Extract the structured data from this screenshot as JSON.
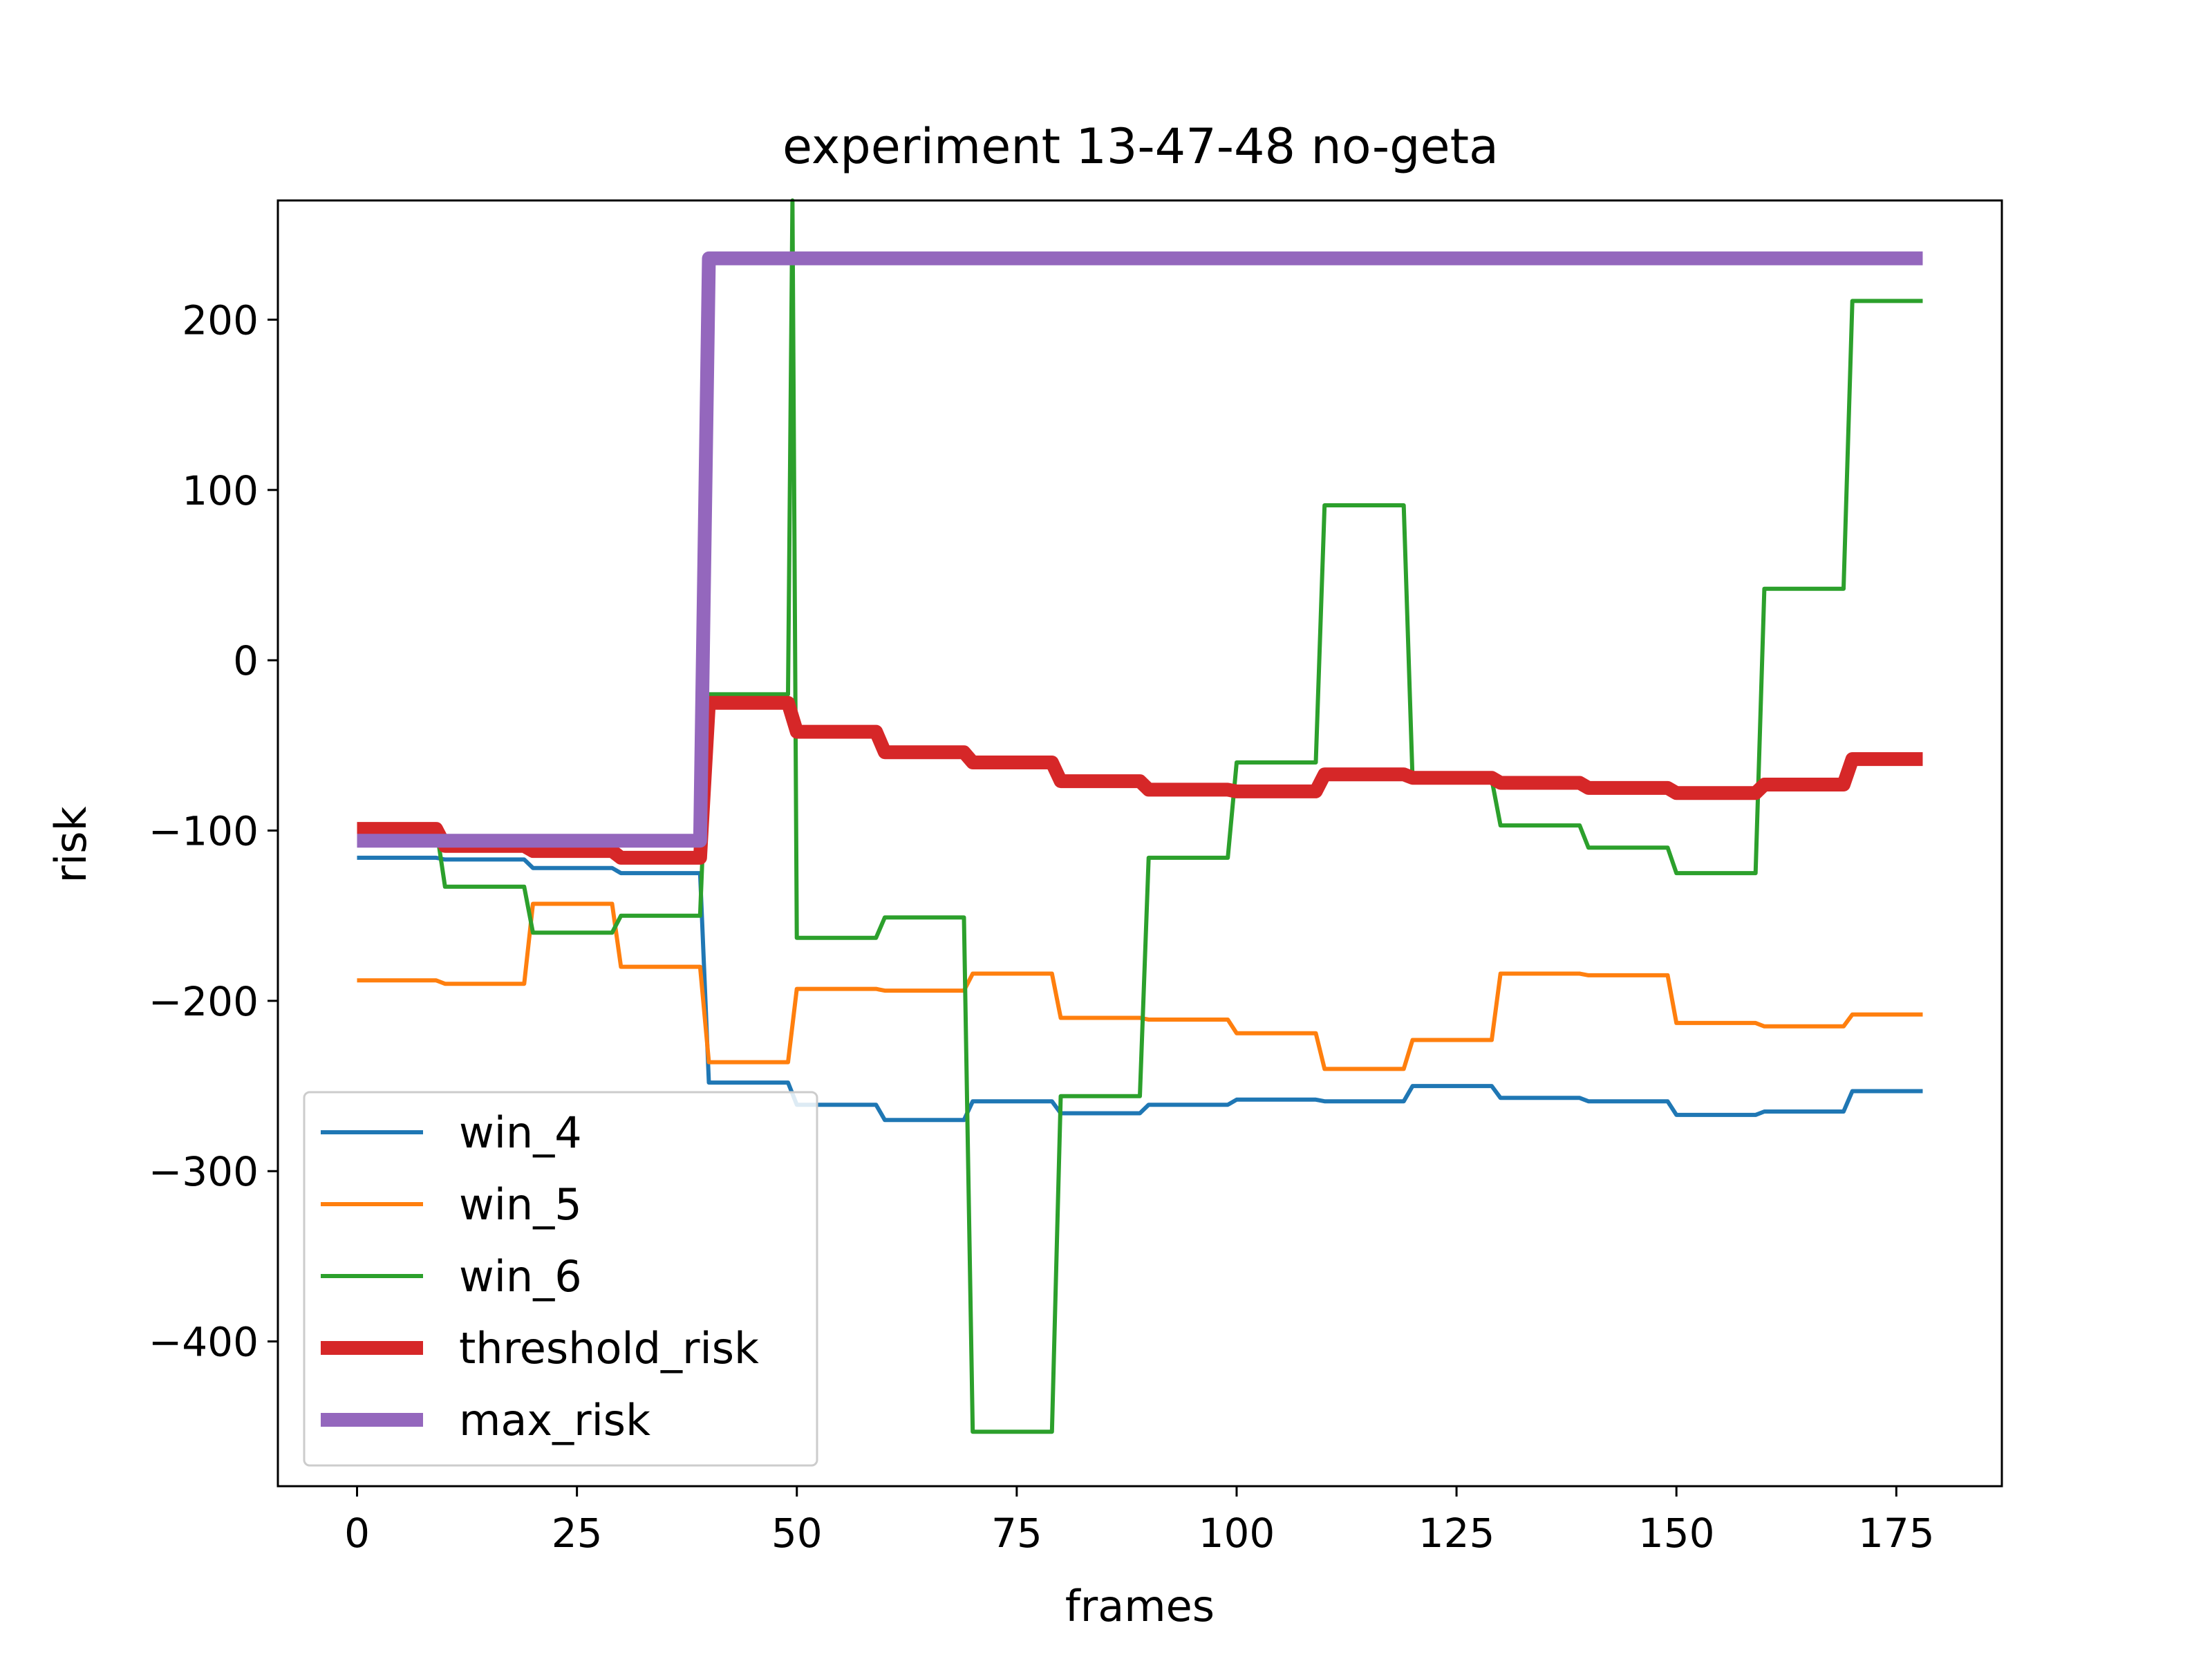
{
  "chart_data": {
    "type": "line",
    "title": "experiment 13-47-48 no-geta",
    "xlabel": "frames",
    "ylabel": "risk",
    "xlim": [
      -9,
      187
    ],
    "ylim": [
      -485,
      270
    ],
    "xticks": [
      0,
      25,
      50,
      75,
      100,
      125,
      150,
      175
    ],
    "yticks": [
      -400,
      -300,
      -200,
      -100,
      0,
      100,
      200
    ],
    "ytick_labels": [
      "−400",
      "−300",
      "−200",
      "−100",
      "0",
      "100",
      "200"
    ],
    "grid": false,
    "legend_position": "lower-left",
    "series": [
      {
        "name": "win_4",
        "color": "#1f77b4",
        "width": "thin",
        "points": [
          [
            0,
            -116
          ],
          [
            9,
            -116
          ],
          [
            10,
            -117
          ],
          [
            19,
            -117
          ],
          [
            20,
            -122
          ],
          [
            29,
            -122
          ],
          [
            30,
            -125
          ],
          [
            39,
            -125
          ],
          [
            40,
            -248
          ],
          [
            49,
            -248
          ],
          [
            50,
            -261
          ],
          [
            59,
            -261
          ],
          [
            60,
            -270
          ],
          [
            69,
            -270
          ],
          [
            70,
            -259
          ],
          [
            79,
            -259
          ],
          [
            80,
            -266
          ],
          [
            89,
            -266
          ],
          [
            90,
            -261
          ],
          [
            99,
            -261
          ],
          [
            100,
            -258
          ],
          [
            109,
            -258
          ],
          [
            110,
            -259
          ],
          [
            119,
            -259
          ],
          [
            120,
            -250
          ],
          [
            129,
            -250
          ],
          [
            130,
            -257
          ],
          [
            139,
            -257
          ],
          [
            140,
            -259
          ],
          [
            149,
            -259
          ],
          [
            150,
            -267
          ],
          [
            159,
            -267
          ],
          [
            160,
            -265
          ],
          [
            169,
            -265
          ],
          [
            170,
            -253
          ],
          [
            178,
            -253
          ]
        ]
      },
      {
        "name": "win_5",
        "color": "#ff7f0e",
        "width": "thin",
        "points": [
          [
            0,
            -188
          ],
          [
            9,
            -188
          ],
          [
            10,
            -190
          ],
          [
            19,
            -190
          ],
          [
            20,
            -143
          ],
          [
            29,
            -143
          ],
          [
            30,
            -180
          ],
          [
            39,
            -180
          ],
          [
            40,
            -236
          ],
          [
            49,
            -236
          ],
          [
            50,
            -193
          ],
          [
            59,
            -193
          ],
          [
            60,
            -194
          ],
          [
            69,
            -194
          ],
          [
            70,
            -184
          ],
          [
            79,
            -184
          ],
          [
            80,
            -210
          ],
          [
            89,
            -210
          ],
          [
            90,
            -211
          ],
          [
            99,
            -211
          ],
          [
            100,
            -219
          ],
          [
            109,
            -219
          ],
          [
            110,
            -240
          ],
          [
            119,
            -240
          ],
          [
            120,
            -223
          ],
          [
            129,
            -223
          ],
          [
            130,
            -184
          ],
          [
            139,
            -184
          ],
          [
            140,
            -185
          ],
          [
            149,
            -185
          ],
          [
            150,
            -213
          ],
          [
            159,
            -213
          ],
          [
            160,
            -215
          ],
          [
            169,
            -215
          ],
          [
            170,
            -208
          ],
          [
            178,
            -208
          ]
        ]
      },
      {
        "name": "win_6",
        "color": "#2ca02c",
        "width": "thin",
        "points": [
          [
            0,
            -98
          ],
          [
            9,
            -98
          ],
          [
            10,
            -133
          ],
          [
            19,
            -133
          ],
          [
            20,
            -160
          ],
          [
            29,
            -160
          ],
          [
            30,
            -150
          ],
          [
            39,
            -150
          ],
          [
            40,
            -20
          ],
          [
            49,
            -20
          ],
          [
            49.5,
            270
          ],
          [
            50,
            -163
          ],
          [
            59,
            -163
          ],
          [
            60,
            -151
          ],
          [
            69,
            -151
          ],
          [
            70,
            -453
          ],
          [
            79,
            -453
          ],
          [
            80,
            -256
          ],
          [
            89,
            -256
          ],
          [
            90,
            -116
          ],
          [
            99,
            -116
          ],
          [
            100,
            -60
          ],
          [
            109,
            -60
          ],
          [
            110,
            91
          ],
          [
            119,
            91
          ],
          [
            120,
            -70
          ],
          [
            129,
            -70
          ],
          [
            130,
            -97
          ],
          [
            139,
            -97
          ],
          [
            140,
            -110
          ],
          [
            149,
            -110
          ],
          [
            150,
            -125
          ],
          [
            159,
            -125
          ],
          [
            160,
            42
          ],
          [
            169,
            42
          ],
          [
            170,
            211
          ],
          [
            178,
            211
          ]
        ]
      },
      {
        "name": "threshold_risk",
        "color": "#d62728",
        "width": "thick",
        "points": [
          [
            0,
            -99
          ],
          [
            9,
            -99
          ],
          [
            10,
            -109
          ],
          [
            19,
            -109
          ],
          [
            20,
            -112
          ],
          [
            29,
            -112
          ],
          [
            30,
            -116
          ],
          [
            39,
            -116
          ],
          [
            40,
            -25
          ],
          [
            49,
            -25
          ],
          [
            50,
            -42
          ],
          [
            59,
            -42
          ],
          [
            60,
            -54
          ],
          [
            69,
            -54
          ],
          [
            70,
            -60
          ],
          [
            79,
            -60
          ],
          [
            80,
            -71
          ],
          [
            89,
            -71
          ],
          [
            90,
            -76
          ],
          [
            99,
            -76
          ],
          [
            100,
            -77
          ],
          [
            109,
            -77
          ],
          [
            110,
            -67
          ],
          [
            119,
            -67
          ],
          [
            120,
            -69
          ],
          [
            129,
            -69
          ],
          [
            130,
            -72
          ],
          [
            139,
            -72
          ],
          [
            140,
            -75
          ],
          [
            149,
            -75
          ],
          [
            150,
            -78
          ],
          [
            159,
            -78
          ],
          [
            160,
            -73
          ],
          [
            169,
            -73
          ],
          [
            170,
            -58
          ],
          [
            178,
            -58
          ]
        ]
      },
      {
        "name": "max_risk",
        "color": "#9467bd",
        "width": "thick",
        "points": [
          [
            0,
            -106
          ],
          [
            39,
            -106
          ],
          [
            40,
            236
          ],
          [
            178,
            236
          ]
        ]
      }
    ]
  }
}
